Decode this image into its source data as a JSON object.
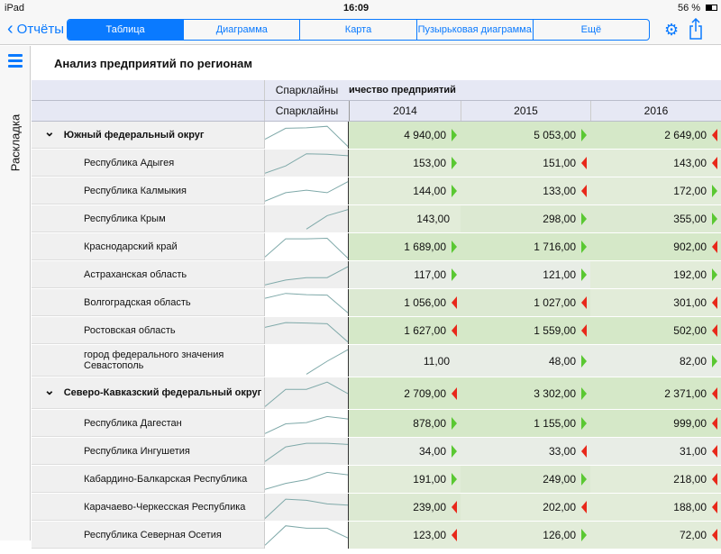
{
  "status": {
    "device": "iPad",
    "time": "16:09",
    "battery": "56 %"
  },
  "nav": {
    "back": "Отчёты",
    "tabs": [
      "Таблица",
      "Диаграмма",
      "Карта",
      "Пузырьковая диаграмма",
      "Ещё"
    ],
    "active_tab": "Таблица"
  },
  "sidebar": {
    "label": "Раскладка"
  },
  "report": {
    "title": "Анализ предприятий по регионам"
  },
  "table": {
    "header1": {
      "spark": "Спарклайны",
      "measure": "ичество предприятий"
    },
    "header2": {
      "spark": "Спарклайны",
      "years": [
        "2014",
        "2015",
        "2016"
      ]
    },
    "rows": [
      {
        "label": "Южный федеральный округ",
        "group": true,
        "spark": [
          0.35,
          0.8,
          0.82,
          0.88,
          0.05
        ],
        "cells": [
          {
            "v": "4 940,00",
            "t": "up",
            "s": 0
          },
          {
            "v": "5 053,00",
            "t": "up",
            "s": 0
          },
          {
            "v": "2 649,00",
            "t": "down",
            "s": 0
          }
        ]
      },
      {
        "label": "Республика Адыгея",
        "spark": [
          0.1,
          0.4,
          0.9,
          0.88,
          0.82
        ],
        "cells": [
          {
            "v": "153,00",
            "t": "up",
            "s": 1
          },
          {
            "v": "151,00",
            "t": "down",
            "s": 1
          },
          {
            "v": "143,00",
            "t": "down",
            "s": 1
          }
        ]
      },
      {
        "label": "Республика Калмыкия",
        "spark": [
          0.1,
          0.45,
          0.55,
          0.45,
          0.9
        ],
        "cells": [
          {
            "v": "144,00",
            "t": "up",
            "s": 1
          },
          {
            "v": "133,00",
            "t": "down",
            "s": 1
          },
          {
            "v": "172,00",
            "t": "up",
            "s": 1
          }
        ]
      },
      {
        "label": "Республика Крым",
        "spark": [
          null,
          null,
          0.1,
          0.65,
          0.9
        ],
        "cells": [
          {
            "v": "143,00",
            "t": "none",
            "s": 1
          },
          {
            "v": "298,00",
            "t": "up",
            "s": 3
          },
          {
            "v": "355,00",
            "t": "up",
            "s": 3
          }
        ]
      },
      {
        "label": "Краснодарский край",
        "spark": [
          0.1,
          0.85,
          0.85,
          0.87,
          0.05
        ],
        "cells": [
          {
            "v": "1 689,00",
            "t": "up",
            "s": 0
          },
          {
            "v": "1 716,00",
            "t": "up",
            "s": 0
          },
          {
            "v": "902,00",
            "t": "down",
            "s": 0
          }
        ]
      },
      {
        "label": "Астраханская область",
        "spark": [
          0.1,
          0.3,
          0.4,
          0.4,
          0.85
        ],
        "cells": [
          {
            "v": "117,00",
            "t": "up",
            "s": 2
          },
          {
            "v": "121,00",
            "t": "up",
            "s": 2
          },
          {
            "v": "192,00",
            "t": "up",
            "s": 1
          }
        ]
      },
      {
        "label": "Волгоградская область",
        "spark": [
          0.7,
          0.9,
          0.85,
          0.83,
          0.1
        ],
        "cells": [
          {
            "v": "1 056,00",
            "t": "down",
            "s": 3
          },
          {
            "v": "1 027,00",
            "t": "down",
            "s": 3
          },
          {
            "v": "301,00",
            "t": "down",
            "s": 1
          }
        ]
      },
      {
        "label": "Ростовская область",
        "spark": [
          0.65,
          0.85,
          0.83,
          0.8,
          0.05
        ],
        "cells": [
          {
            "v": "1 627,00",
            "t": "down",
            "s": 0
          },
          {
            "v": "1 559,00",
            "t": "down",
            "s": 0
          },
          {
            "v": "502,00",
            "t": "down",
            "s": 0
          }
        ]
      },
      {
        "label": "город федерального значения Севастополь",
        "tall": true,
        "spark": [
          null,
          null,
          0.05,
          0.5,
          0.9
        ],
        "cells": [
          {
            "v": "11,00",
            "t": "none",
            "s": 2
          },
          {
            "v": "48,00",
            "t": "up",
            "s": 2
          },
          {
            "v": "82,00",
            "t": "up",
            "s": 2
          }
        ]
      },
      {
        "label": "Северо-Кавказский федеральный округ",
        "group": true,
        "tall": true,
        "spark": [
          0.05,
          0.65,
          0.65,
          0.9,
          0.5
        ],
        "cells": [
          {
            "v": "2 709,00",
            "t": "down",
            "s": 0
          },
          {
            "v": "3 302,00",
            "t": "up",
            "s": 0
          },
          {
            "v": "2 371,00",
            "t": "down",
            "s": 0
          }
        ]
      },
      {
        "label": "Республика Дагестан",
        "spark": [
          0.1,
          0.5,
          0.55,
          0.8,
          0.7
        ],
        "cells": [
          {
            "v": "878,00",
            "t": "up",
            "s": 0
          },
          {
            "v": "1 155,00",
            "t": "up",
            "s": 0
          },
          {
            "v": "999,00",
            "t": "down",
            "s": 0
          }
        ]
      },
      {
        "label": "Республика Ингушетия",
        "spark": [
          0.1,
          0.7,
          0.85,
          0.85,
          0.8
        ],
        "cells": [
          {
            "v": "34,00",
            "t": "up",
            "s": 2
          },
          {
            "v": "33,00",
            "t": "down",
            "s": 2
          },
          {
            "v": "31,00",
            "t": "down",
            "s": 2
          }
        ]
      },
      {
        "label": "Кабардино-Балкарская Республика",
        "spark": [
          0.1,
          0.35,
          0.5,
          0.8,
          0.7
        ],
        "cells": [
          {
            "v": "191,00",
            "t": "up",
            "s": 1
          },
          {
            "v": "249,00",
            "t": "up",
            "s": 3
          },
          {
            "v": "218,00",
            "t": "down",
            "s": 1
          }
        ]
      },
      {
        "label": "Карачаево-Черкесская Республика",
        "spark": [
          0.05,
          0.85,
          0.8,
          0.65,
          0.6
        ],
        "cells": [
          {
            "v": "239,00",
            "t": "down",
            "s": 3
          },
          {
            "v": "202,00",
            "t": "down",
            "s": 1
          },
          {
            "v": "188,00",
            "t": "down",
            "s": 1
          }
        ]
      },
      {
        "label": "Республика Северная Осетия",
        "spark": [
          0.1,
          0.9,
          0.8,
          0.8,
          0.4
        ],
        "cells": [
          {
            "v": "123,00",
            "t": "down",
            "s": 1
          },
          {
            "v": "126,00",
            "t": "up",
            "s": 1
          },
          {
            "v": "72,00",
            "t": "down",
            "s": 1
          }
        ]
      }
    ]
  },
  "colors": {
    "accent": "#0a7aff",
    "up": "#5ac832",
    "down": "#e8281a",
    "shades": [
      "#d5e8c8",
      "#e2ecd9",
      "#e8ede6",
      "#dce9d2"
    ],
    "sparkline": "#7fa9a9"
  }
}
